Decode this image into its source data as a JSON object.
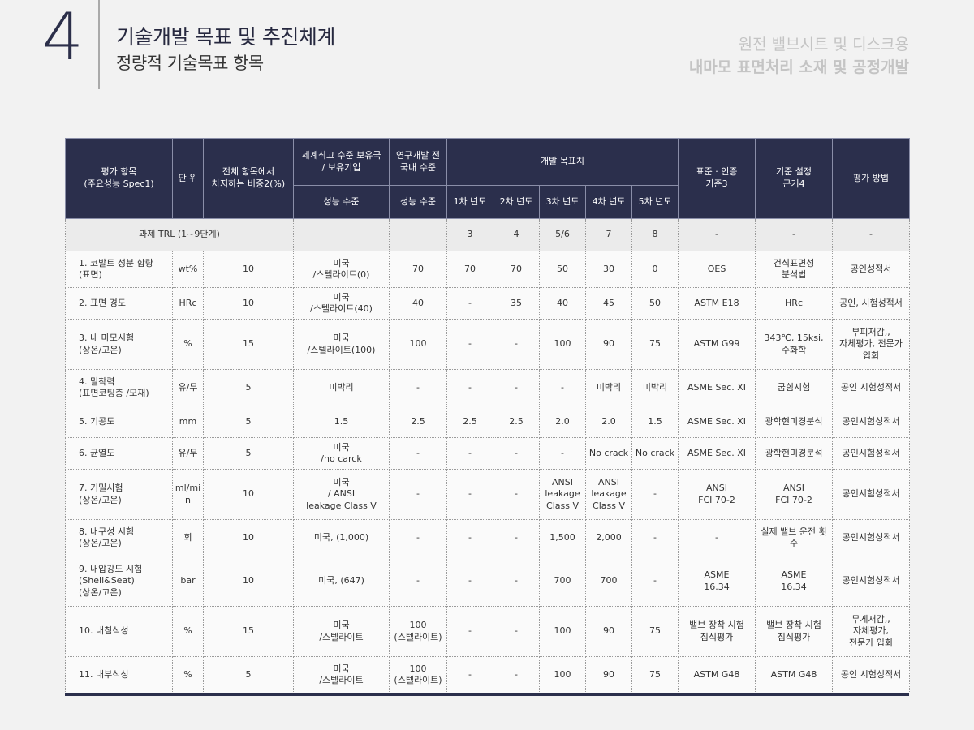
{
  "header": {
    "section_number": "4",
    "title": "기술개발 목표 및 추진체계",
    "subtitle": "정량적 기술목표 항목",
    "project_line1": "원전 밸브시트 및 디스크용",
    "project_line2": "내마모 표면처리 소재 및 공정개발"
  },
  "table": {
    "headers": {
      "item": "평가 항목\n(주요성능 Spec1)",
      "unit": "단 위",
      "weight": "전체 항목에서\n차지하는 비중2(%)",
      "world_best": "세계최고 수준 보유국\n/ 보유기업",
      "domestic": "연구개발 전\n국내 수준",
      "target": "개발 목표치",
      "standard": "표준 · 인증\n기준3",
      "basis": "기준 설정\n근거4",
      "method": "평가 방법",
      "perf1": "성능 수준",
      "perf2": "성능 수준",
      "y1": "1차 년도",
      "y2": "2차 년도",
      "y3": "3차 년도",
      "y4": "4차 년도",
      "y5": "5차 년도"
    },
    "trl_row": {
      "label": "과제 TRL (1~9단계)",
      "world": "",
      "domestic": "",
      "y1": "3",
      "y2": "4",
      "y3": "5/6",
      "y4": "7",
      "y5": "8",
      "standard": "-",
      "basis": "-",
      "method": "-"
    },
    "rows": [
      {
        "item": "1. 코발트 성분 함량\n(표면)",
        "unit": "wt%",
        "weight": "10",
        "world": "미국\n/스텔라이트(0)",
        "domestic": "70",
        "y1": "70",
        "y2": "70",
        "y3": "50",
        "y4": "30",
        "y5": "0",
        "standard": "OES",
        "basis": "건식표면성\n분석법",
        "method": "공인성적서"
      },
      {
        "item": "2. 표면 경도",
        "unit": "HRc",
        "weight": "10",
        "world": "미국\n/스텔라이트(40)",
        "domestic": "40",
        "y1": "-",
        "y2": "35",
        "y3": "40",
        "y4": "45",
        "y5": "50",
        "standard": "ASTM E18",
        "basis": "HRc",
        "method": "공인, 시험성적서"
      },
      {
        "item": "3. 내 마모시험\n(상온/고온)",
        "unit": "%",
        "weight": "15",
        "world": "미국\n/스텔라이트(100)",
        "domestic": "100",
        "y1": "-",
        "y2": "-",
        "y3": "100",
        "y4": "90",
        "y5": "75",
        "standard": "ASTM G99",
        "basis": "343℃, 15ksi,\n수화학",
        "method": "부피저감,,\n자체평가, 전문가\n입회"
      },
      {
        "item": "4. 밀착력\n(표면코팅층 /모재)",
        "unit": "유/무",
        "weight": "5",
        "world": "미박리",
        "domestic": "-",
        "y1": "-",
        "y2": "-",
        "y3": "-",
        "y4": "미박리",
        "y5": "미박리",
        "standard": "ASME Sec. XI",
        "basis": "굽힘시험",
        "method": "공인 시험성적서"
      },
      {
        "item": "5. 기공도",
        "unit": "mm",
        "weight": "5",
        "world": "1.5",
        "domestic": "2.5",
        "y1": "2.5",
        "y2": "2.5",
        "y3": "2.0",
        "y4": "2.0",
        "y5": "1.5",
        "standard": "ASME Sec. XI",
        "basis": "광학현미경분석",
        "method": "공인시험성적서"
      },
      {
        "item": "6. 균열도",
        "unit": "유/무",
        "weight": "5",
        "world": "미국\n/no carck",
        "domestic": "-",
        "y1": "-",
        "y2": "-",
        "y3": "-",
        "y4": "No crack",
        "y5": "No crack",
        "standard": "ASME Sec. XI",
        "basis": "광학현미경분석",
        "method": "공인시험성적서"
      },
      {
        "item": "7. 기밀시험\n(상온/고온)",
        "unit": "ml/mi\nn",
        "weight": "10",
        "world": "미국\n/ ANSI\nleakage Class V",
        "domestic": "-",
        "y1": "-",
        "y2": "-",
        "y3": "ANSI\nleakage\nClass V",
        "y4": "ANSI\nleakage\nClass V",
        "y5": "-",
        "standard": "ANSI\nFCI 70-2",
        "basis": "ANSI\nFCI 70-2",
        "method": "공인시험성적서"
      },
      {
        "item": "8. 내구성 시험\n(상온/고온)",
        "unit": "회",
        "weight": "10",
        "world": "미국, (1,000)",
        "domestic": "-",
        "y1": "-",
        "y2": "-",
        "y3": "1,500",
        "y4": "2,000",
        "y5": "-",
        "standard": "-",
        "basis": "실제 밸브 운전 횟수",
        "method": "공인시험성적서"
      },
      {
        "item": "9. 내압강도 시험\n(Shell&Seat)\n(상온/고온)",
        "unit": "bar",
        "weight": "10",
        "world": "미국, (647)",
        "domestic": "-",
        "y1": "-",
        "y2": "-",
        "y3": "700",
        "y4": "700",
        "y5": "-",
        "standard": "ASME\n16.34",
        "basis": "ASME\n16.34",
        "method": "공인시험성적서"
      },
      {
        "item": "10. 내침식성",
        "unit": "%",
        "weight": "15",
        "world": "미국\n/스텔라이트",
        "domestic": "100\n(스텔라이트)",
        "y1": "-",
        "y2": "-",
        "y3": "100",
        "y4": "90",
        "y5": "75",
        "standard": "밸브 장착 시험\n침식평가",
        "basis": "밸브 장착 시험\n침식평가",
        "method": "무게저감,,\n자체평가,\n전문가 입회"
      },
      {
        "item": "11. 내부식성",
        "unit": "%",
        "weight": "5",
        "world": "미국\n/스텔라이트",
        "domestic": "100\n(스텔라이트)",
        "y1": "-",
        "y2": "-",
        "y3": "100",
        "y4": "90",
        "y5": "75",
        "standard": "ASTM G48",
        "basis": "ASTM G48",
        "method": "공인 시험성적서"
      }
    ]
  }
}
